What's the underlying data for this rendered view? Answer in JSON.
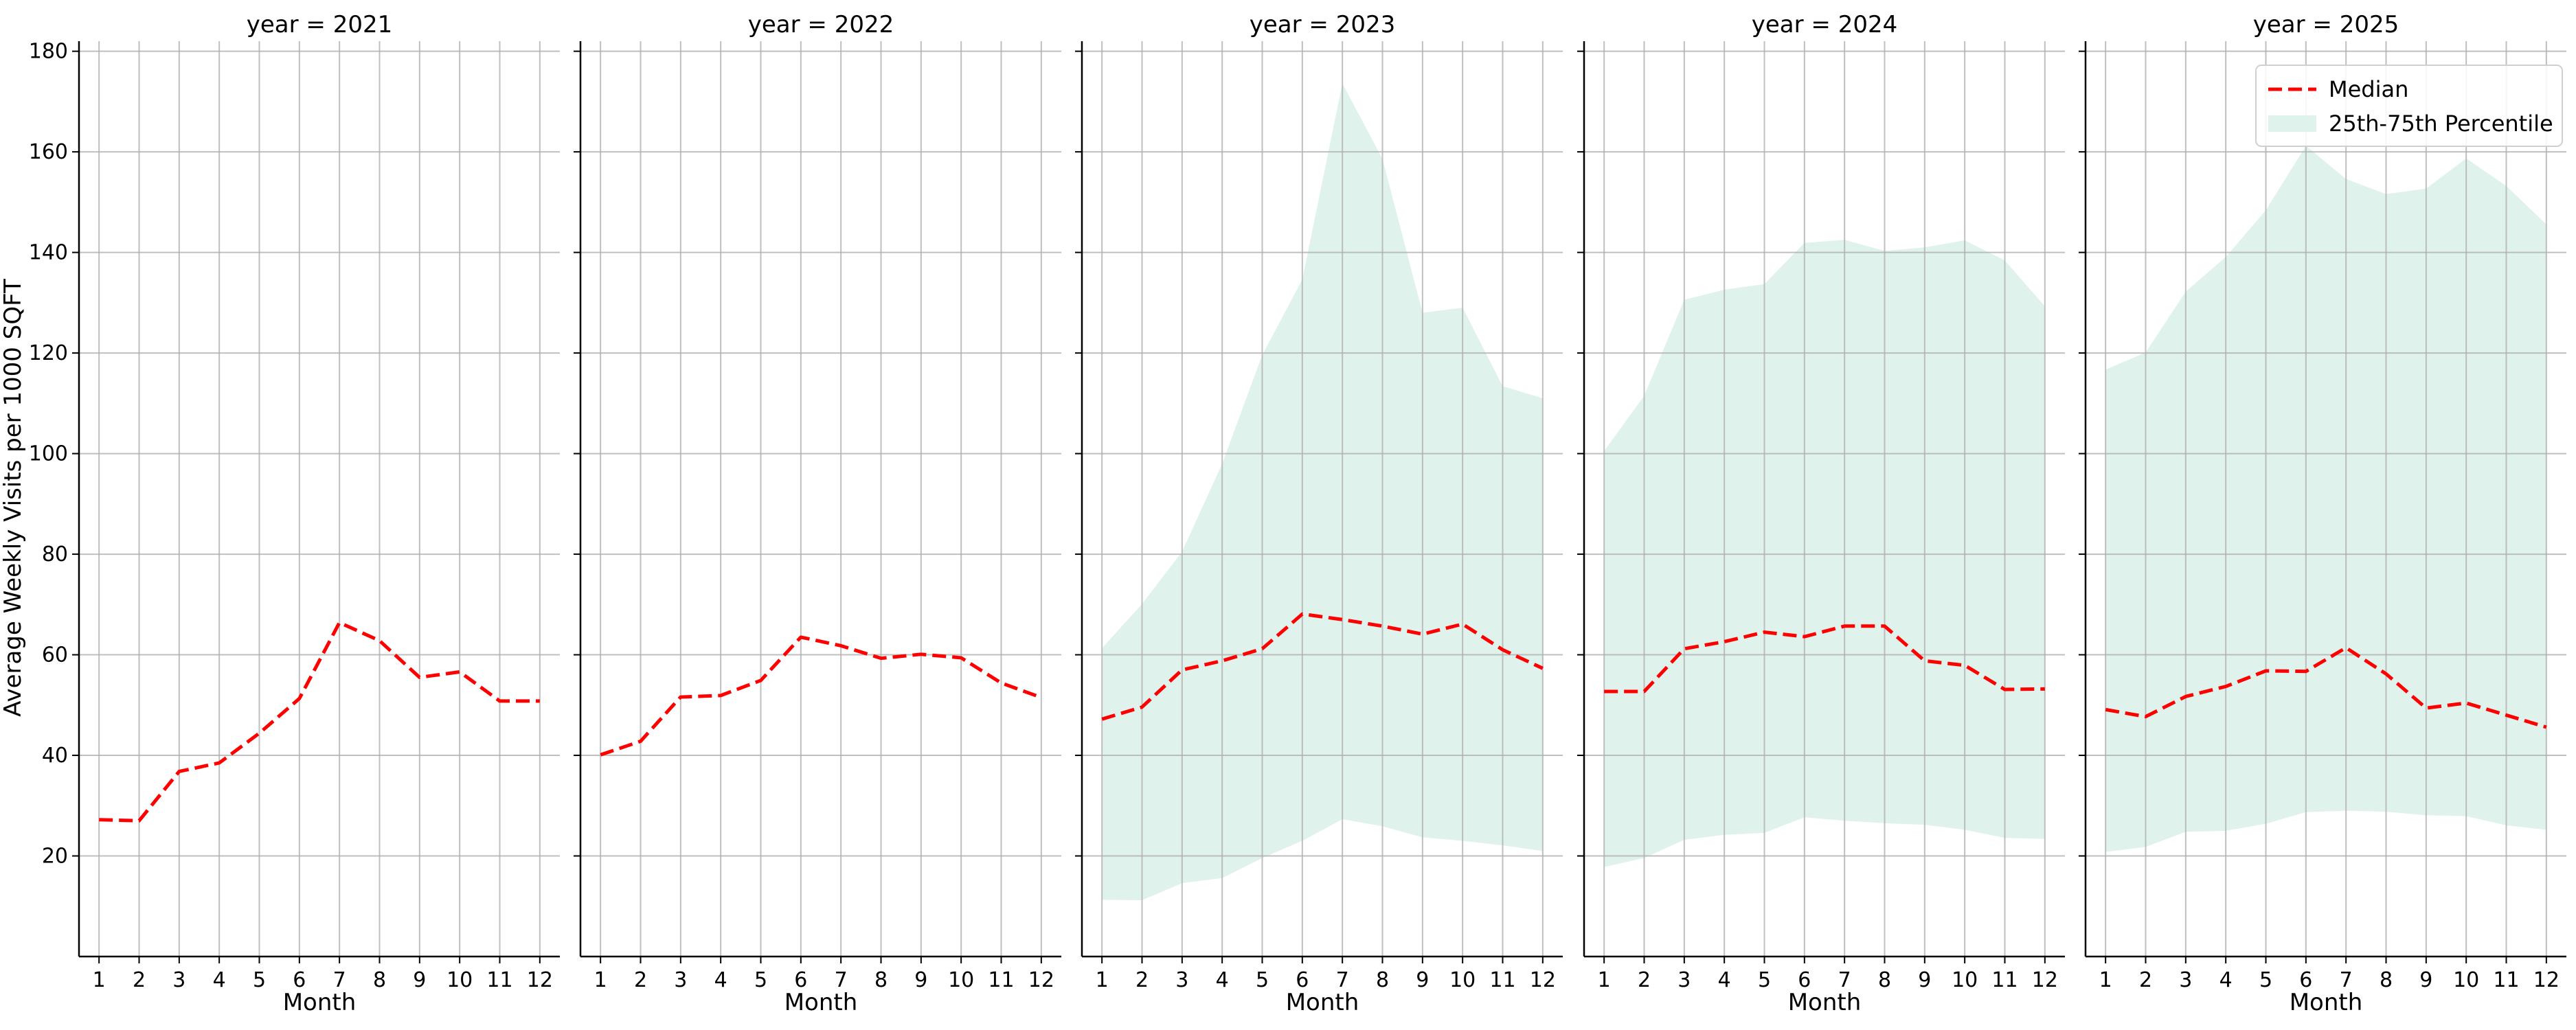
{
  "chart_data": {
    "type": "line",
    "layout": "facet-columns",
    "ylabel": "Average Weekly Visits per 1000 SQFT",
    "xlabel": "Month",
    "x": [
      1,
      2,
      3,
      4,
      5,
      6,
      7,
      8,
      9,
      10,
      11,
      12
    ],
    "ylim": [
      0,
      182
    ],
    "yticks": [
      20,
      40,
      60,
      80,
      100,
      120,
      140,
      160,
      180
    ],
    "xlim": [
      0.5,
      12.5
    ],
    "grid": true,
    "sharey": true,
    "colors": {
      "median": "#ff0000",
      "band": "#dff2ec",
      "grid": "#b0b0b0"
    },
    "legend": {
      "placement": "top-right",
      "panel_index": 4,
      "entries": [
        {
          "label": "Median",
          "kind": "dashed-line"
        },
        {
          "label": "25th-75th Percentile",
          "kind": "band"
        }
      ]
    },
    "panels": [
      {
        "title": "year = 2021",
        "median": [
          27.2,
          27.0,
          36.8,
          38.5,
          44.4,
          51.3,
          66.4,
          62.8,
          55.5,
          56.6,
          50.8,
          50.8
        ],
        "p25": null,
        "p75": null
      },
      {
        "title": "year = 2022",
        "median": [
          40.1,
          42.8,
          51.6,
          51.9,
          54.9,
          63.5,
          61.8,
          59.3,
          60.1,
          59.4,
          54.4,
          51.5
        ],
        "p25": null,
        "p75": null
      },
      {
        "title": "year = 2023",
        "median": [
          47.2,
          49.6,
          57.0,
          58.8,
          61.2,
          68.1,
          67.0,
          65.7,
          64.1,
          66.1,
          61.0,
          57.3
        ],
        "p25": [
          11.3,
          11.2,
          14.6,
          15.6,
          19.6,
          23.0,
          27.3,
          25.9,
          23.7,
          23.0,
          22.1,
          21.0
        ],
        "p75": [
          61.3,
          70.1,
          80.5,
          98.0,
          119.6,
          134.6,
          173.6,
          158.6,
          128.0,
          129.0,
          113.4,
          111.0
        ]
      },
      {
        "title": "year = 2024",
        "median": [
          52.7,
          52.7,
          61.2,
          62.6,
          64.5,
          63.6,
          65.7,
          65.7,
          58.8,
          57.9,
          53.1,
          53.2
        ],
        "p25": [
          17.8,
          19.6,
          23.2,
          24.2,
          24.6,
          27.7,
          27.0,
          26.5,
          26.2,
          25.2,
          23.6,
          23.4
        ],
        "p75": [
          100.5,
          111.5,
          130.6,
          132.6,
          133.7,
          141.9,
          142.5,
          140.3,
          141.0,
          142.4,
          138.4,
          129.3
        ]
      },
      {
        "title": "year = 2025",
        "median": [
          49.1,
          47.7,
          51.7,
          53.7,
          56.8,
          56.7,
          61.4,
          56.2,
          49.4,
          50.4,
          48.0,
          45.6
        ],
        "p25": [
          20.8,
          21.8,
          24.8,
          25.0,
          26.4,
          28.7,
          29.0,
          28.8,
          28.1,
          27.9,
          26.1,
          25.2
        ],
        "p75": [
          116.7,
          120.1,
          132.2,
          139.1,
          148.4,
          161.2,
          154.6,
          151.6,
          152.7,
          158.7,
          153.2,
          145.6
        ]
      }
    ]
  }
}
